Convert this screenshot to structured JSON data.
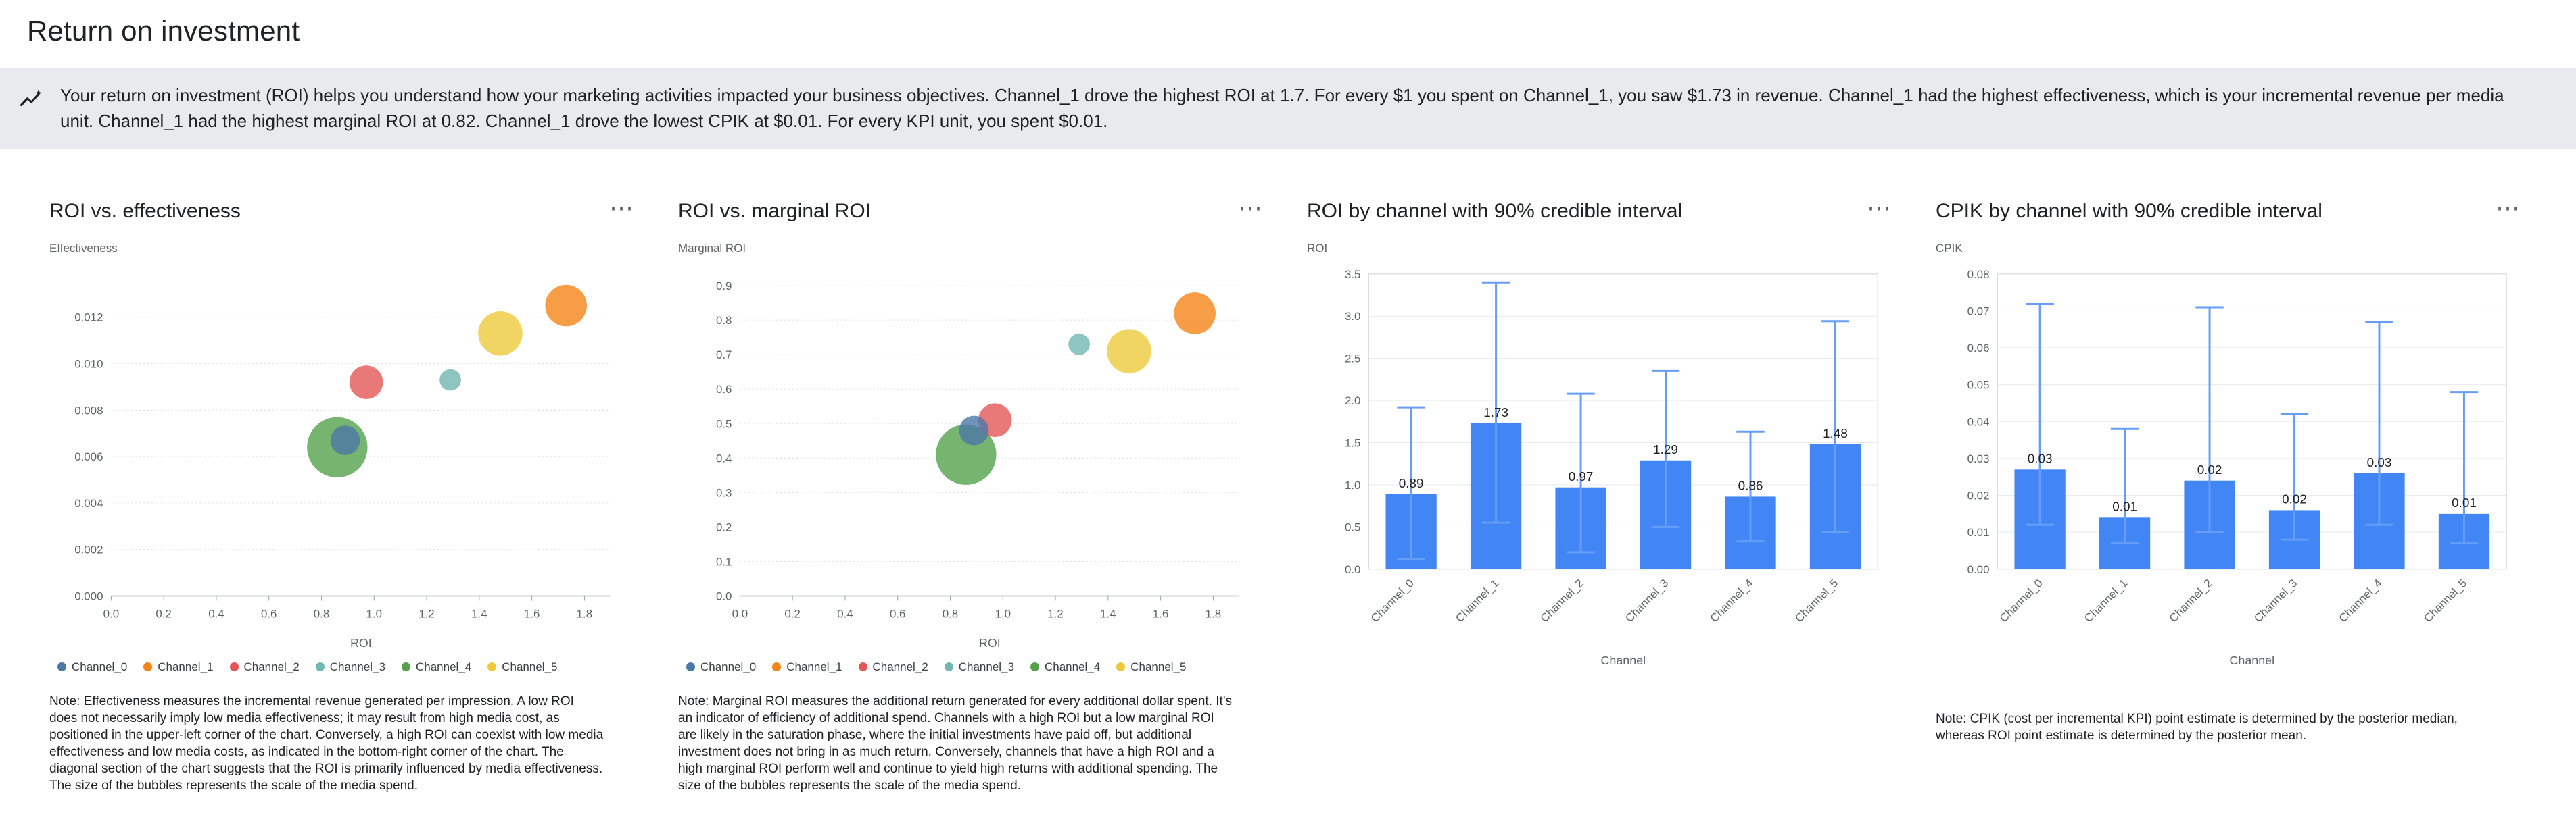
{
  "page": {
    "title": "Return on investment"
  },
  "banner": {
    "text": "Your return on investment (ROI) helps you understand how your marketing activities impacted your business objectives. Channel_1 drove the highest ROI at 1.7. For every $1 you spent on Channel_1, you saw $1.73 in revenue. Channel_1 had the highest effectiveness, which is your incremental revenue per media unit. Channel_1 had the highest marginal ROI at 0.82. Channel_1 drove the lowest CPIK at $0.01. For every KPI unit, you spent $0.01."
  },
  "card_menu_icon": "⋯",
  "channels": [
    {
      "name": "Channel_0",
      "color": "#4C78A8"
    },
    {
      "name": "Channel_1",
      "color": "#F58518"
    },
    {
      "name": "Channel_2",
      "color": "#E45756"
    },
    {
      "name": "Channel_3",
      "color": "#72B7B2"
    },
    {
      "name": "Channel_4",
      "color": "#54A24B"
    },
    {
      "name": "Channel_5",
      "color": "#EECA3B"
    }
  ],
  "chart_data": [
    {
      "type": "scatter",
      "title": "ROI vs. effectiveness",
      "xlabel": "ROI",
      "ylabel": "Effectiveness",
      "xlim": [
        0,
        1.9
      ],
      "ylim": [
        0,
        0.0138
      ],
      "xticks": [
        0,
        0.2,
        0.4,
        0.6,
        0.8,
        1.0,
        1.2,
        1.4,
        1.6,
        1.8
      ],
      "xtick_labels": [
        "0.0",
        "0.2",
        "0.4",
        "0.6",
        "0.8",
        "1.0",
        "1.2",
        "1.4",
        "1.6",
        "1.8"
      ],
      "yticks": [
        0,
        0.002,
        0.004,
        0.006,
        0.008,
        0.01,
        0.012
      ],
      "ytick_labels": [
        "0.000",
        "0.002",
        "0.004",
        "0.006",
        "0.008",
        "0.010",
        "0.012"
      ],
      "points": [
        {
          "channel": "Channel_0",
          "x": 0.89,
          "y": 0.0067,
          "r": 22
        },
        {
          "channel": "Channel_1",
          "x": 1.73,
          "y": 0.0125,
          "r": 31
        },
        {
          "channel": "Channel_2",
          "x": 0.97,
          "y": 0.0092,
          "r": 25
        },
        {
          "channel": "Channel_3",
          "x": 1.29,
          "y": 0.0093,
          "r": 16
        },
        {
          "channel": "Channel_4",
          "x": 0.86,
          "y": 0.0064,
          "r": 45
        },
        {
          "channel": "Channel_5",
          "x": 1.48,
          "y": 0.0113,
          "r": 33
        }
      ],
      "note": "Note: Effectiveness measures the incremental revenue generated per impression. A low ROI does not necessarily imply low media effectiveness; it may result from high media cost, as positioned in the upper-left corner of the chart. Conversely, a high ROI can coexist with low media effectiveness and low media costs, as indicated in the bottom-right corner of the chart. The diagonal section of the chart suggests that the ROI is primarily influenced by media effectiveness. The size of the bubbles represents the scale of the media spend."
    },
    {
      "type": "scatter",
      "title": "ROI vs. marginal ROI",
      "xlabel": "ROI",
      "ylabel": "Marginal ROI",
      "xlim": [
        0,
        1.9
      ],
      "ylim": [
        0,
        0.93
      ],
      "xticks": [
        0,
        0.2,
        0.4,
        0.6,
        0.8,
        1.0,
        1.2,
        1.4,
        1.6,
        1.8
      ],
      "xtick_labels": [
        "0.0",
        "0.2",
        "0.4",
        "0.6",
        "0.8",
        "1.0",
        "1.2",
        "1.4",
        "1.6",
        "1.8"
      ],
      "yticks": [
        0,
        0.1,
        0.2,
        0.3,
        0.4,
        0.5,
        0.6,
        0.7,
        0.8,
        0.9
      ],
      "ytick_labels": [
        "0.0",
        "0.1",
        "0.2",
        "0.3",
        "0.4",
        "0.5",
        "0.6",
        "0.7",
        "0.8",
        "0.9"
      ],
      "points": [
        {
          "channel": "Channel_0",
          "x": 0.89,
          "y": 0.48,
          "r": 22
        },
        {
          "channel": "Channel_1",
          "x": 1.73,
          "y": 0.82,
          "r": 31
        },
        {
          "channel": "Channel_2",
          "x": 0.97,
          "y": 0.51,
          "r": 25
        },
        {
          "channel": "Channel_3",
          "x": 1.29,
          "y": 0.73,
          "r": 16
        },
        {
          "channel": "Channel_4",
          "x": 0.86,
          "y": 0.41,
          "r": 45
        },
        {
          "channel": "Channel_5",
          "x": 1.48,
          "y": 0.71,
          "r": 33
        }
      ],
      "note": "Note: Marginal ROI measures the additional return generated for every additional dollar spent. It's an indicator of efficiency of additional spend. Channels with a high ROI but a low marginal ROI are likely in the saturation phase, where the initial investments have paid off, but additional investment does not bring in as much return. Conversely, channels that have a high ROI and a high marginal ROI perform well and continue to yield high returns with additional spending. The size of the bubbles represents the scale of the media spend."
    },
    {
      "type": "bar",
      "title": "ROI by channel with 90% credible interval",
      "xlabel": "Channel",
      "ylabel": "ROI",
      "ylim": [
        0,
        3.5
      ],
      "yticks": [
        0,
        0.5,
        1.0,
        1.5,
        2.0,
        2.5,
        3.0,
        3.5
      ],
      "ytick_labels": [
        "0.0",
        "0.5",
        "1.0",
        "1.5",
        "2.0",
        "2.5",
        "3.0",
        "3.5"
      ],
      "categories": [
        "Channel_0",
        "Channel_1",
        "Channel_2",
        "Channel_3",
        "Channel_4",
        "Channel_5"
      ],
      "values": [
        0.89,
        1.73,
        0.97,
        1.29,
        0.86,
        1.48
      ],
      "labels": [
        "0.89",
        "1.73",
        "0.97",
        "1.29",
        "0.86",
        "1.48"
      ],
      "ci_low": [
        0.12,
        0.55,
        0.2,
        0.5,
        0.33,
        0.44
      ],
      "ci_high": [
        1.92,
        3.4,
        2.08,
        2.35,
        1.63,
        2.94
      ],
      "bar_color": "#4285F4",
      "ci_color": "#669DF6"
    },
    {
      "type": "bar",
      "title": "CPIK by channel with 90% credible interval",
      "xlabel": "Channel",
      "ylabel": "CPIK",
      "ylim": [
        0,
        0.08
      ],
      "yticks": [
        0,
        0.01,
        0.02,
        0.03,
        0.04,
        0.05,
        0.06,
        0.07,
        0.08
      ],
      "ytick_labels": [
        "0.00",
        "0.01",
        "0.02",
        "0.03",
        "0.04",
        "0.05",
        "0.06",
        "0.07",
        "0.08"
      ],
      "categories": [
        "Channel_0",
        "Channel_1",
        "Channel_2",
        "Channel_3",
        "Channel_4",
        "Channel_5"
      ],
      "values": [
        0.027,
        0.014,
        0.024,
        0.016,
        0.026,
        0.015
      ],
      "labels": [
        "0.03",
        "0.01",
        "0.02",
        "0.02",
        "0.03",
        "0.01"
      ],
      "ci_low": [
        0.012,
        0.007,
        0.01,
        0.008,
        0.012,
        0.007
      ],
      "ci_high": [
        0.072,
        0.038,
        0.071,
        0.042,
        0.067,
        0.048
      ],
      "bar_color": "#4285F4",
      "ci_color": "#669DF6",
      "note": "Note: CPIK (cost per incremental KPI) point estimate is determined by the posterior median, whereas ROI point estimate is determined by the posterior mean."
    }
  ]
}
